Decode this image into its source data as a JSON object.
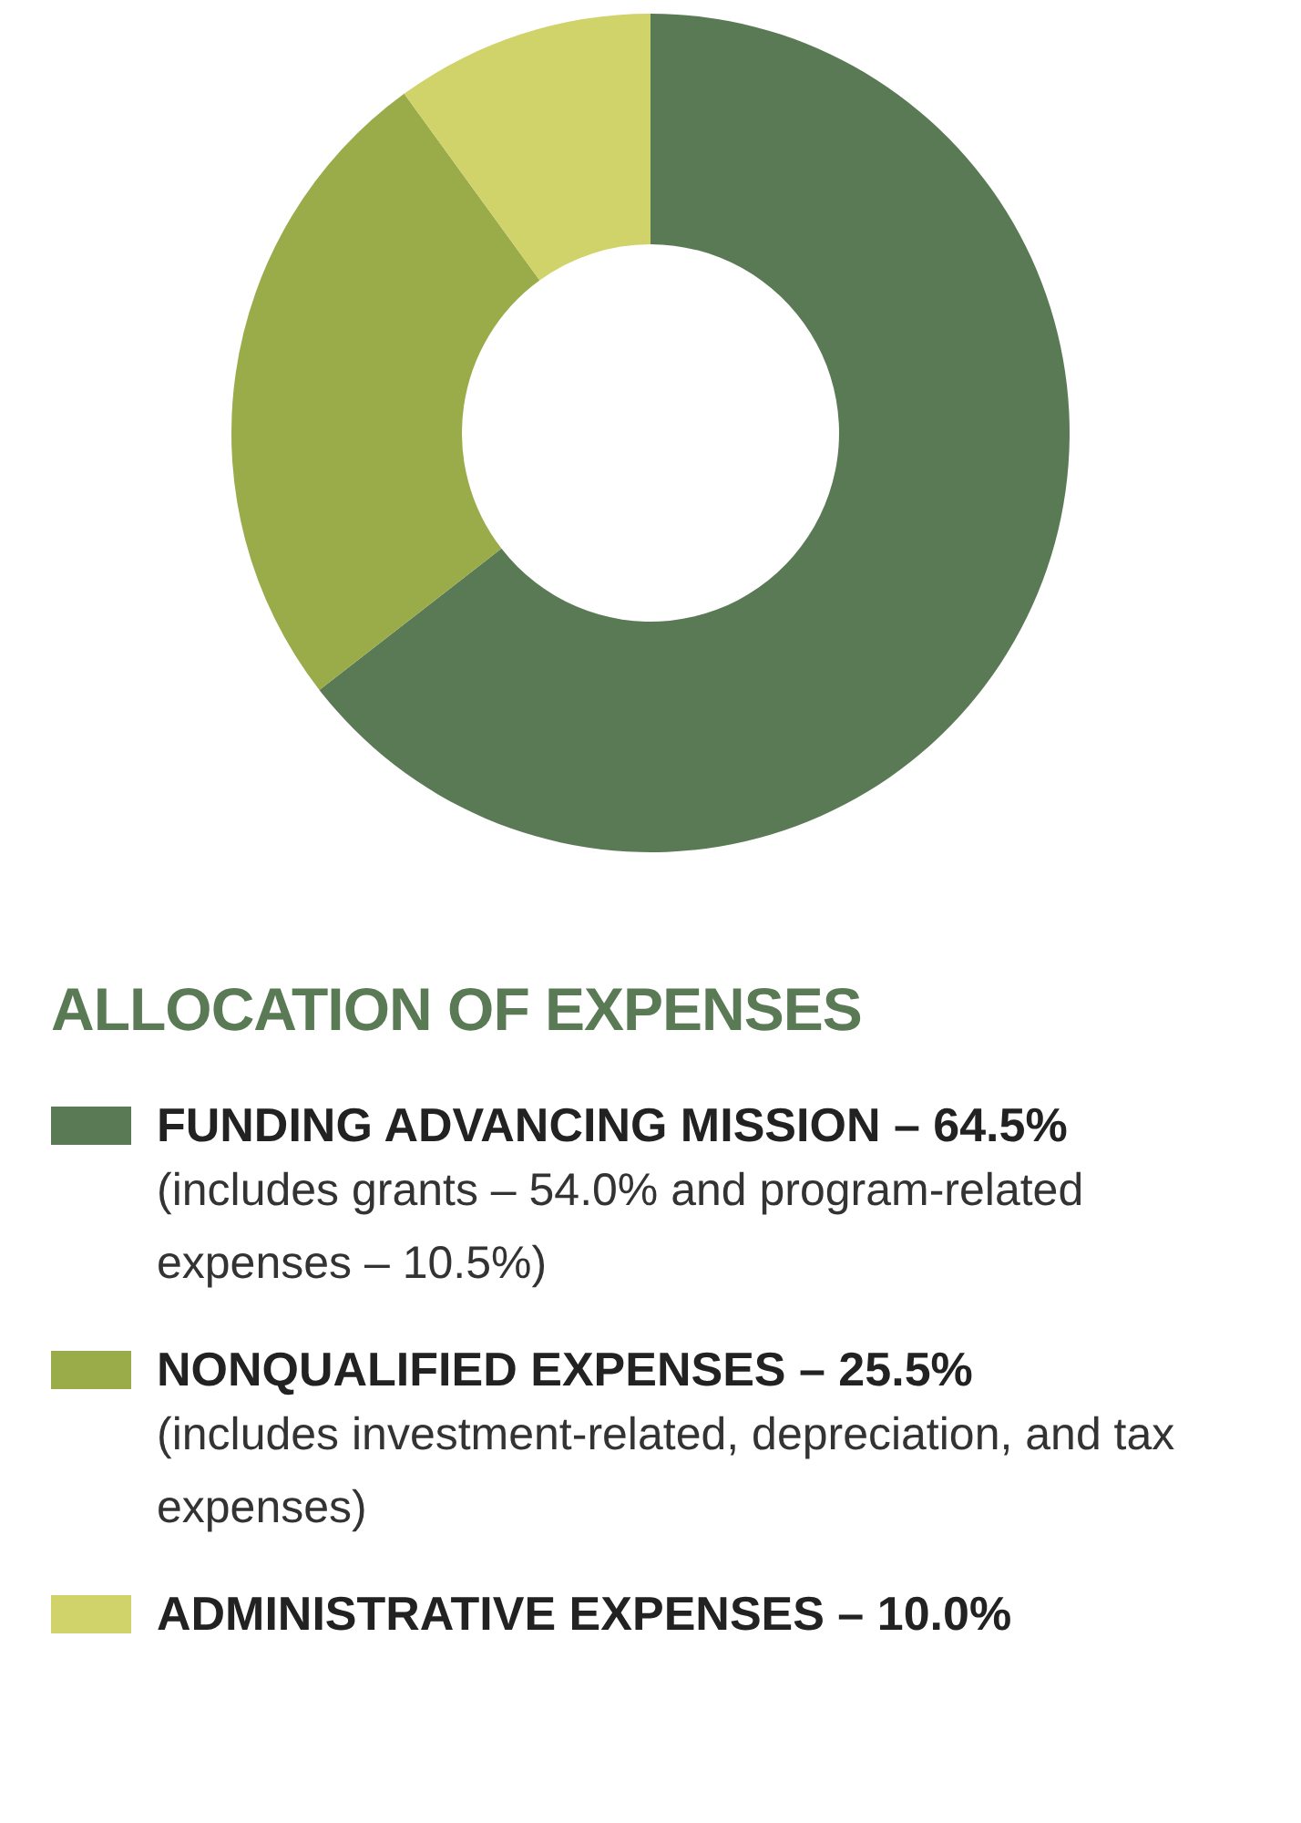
{
  "chart_data": {
    "type": "donut",
    "title": "ALLOCATION OF EXPENSES",
    "categories": [
      "FUNDING ADVANCING MISSION – 64.5%",
      "NONQUALIFIED EXPENSES – 25.5%",
      "ADMINISTRATIVE EXPENSES – 10.0%"
    ],
    "values": [
      64.5,
      25.5,
      10.0
    ],
    "colors": [
      "#5a7a55",
      "#9aab4a",
      "#d0d36a"
    ],
    "annotations": [
      "(includes grants – 54.0% and program-related expenses – 10.5%)",
      "(includes investment-related, depreciation, and tax expenses)"
    ],
    "legend": "bottom"
  }
}
